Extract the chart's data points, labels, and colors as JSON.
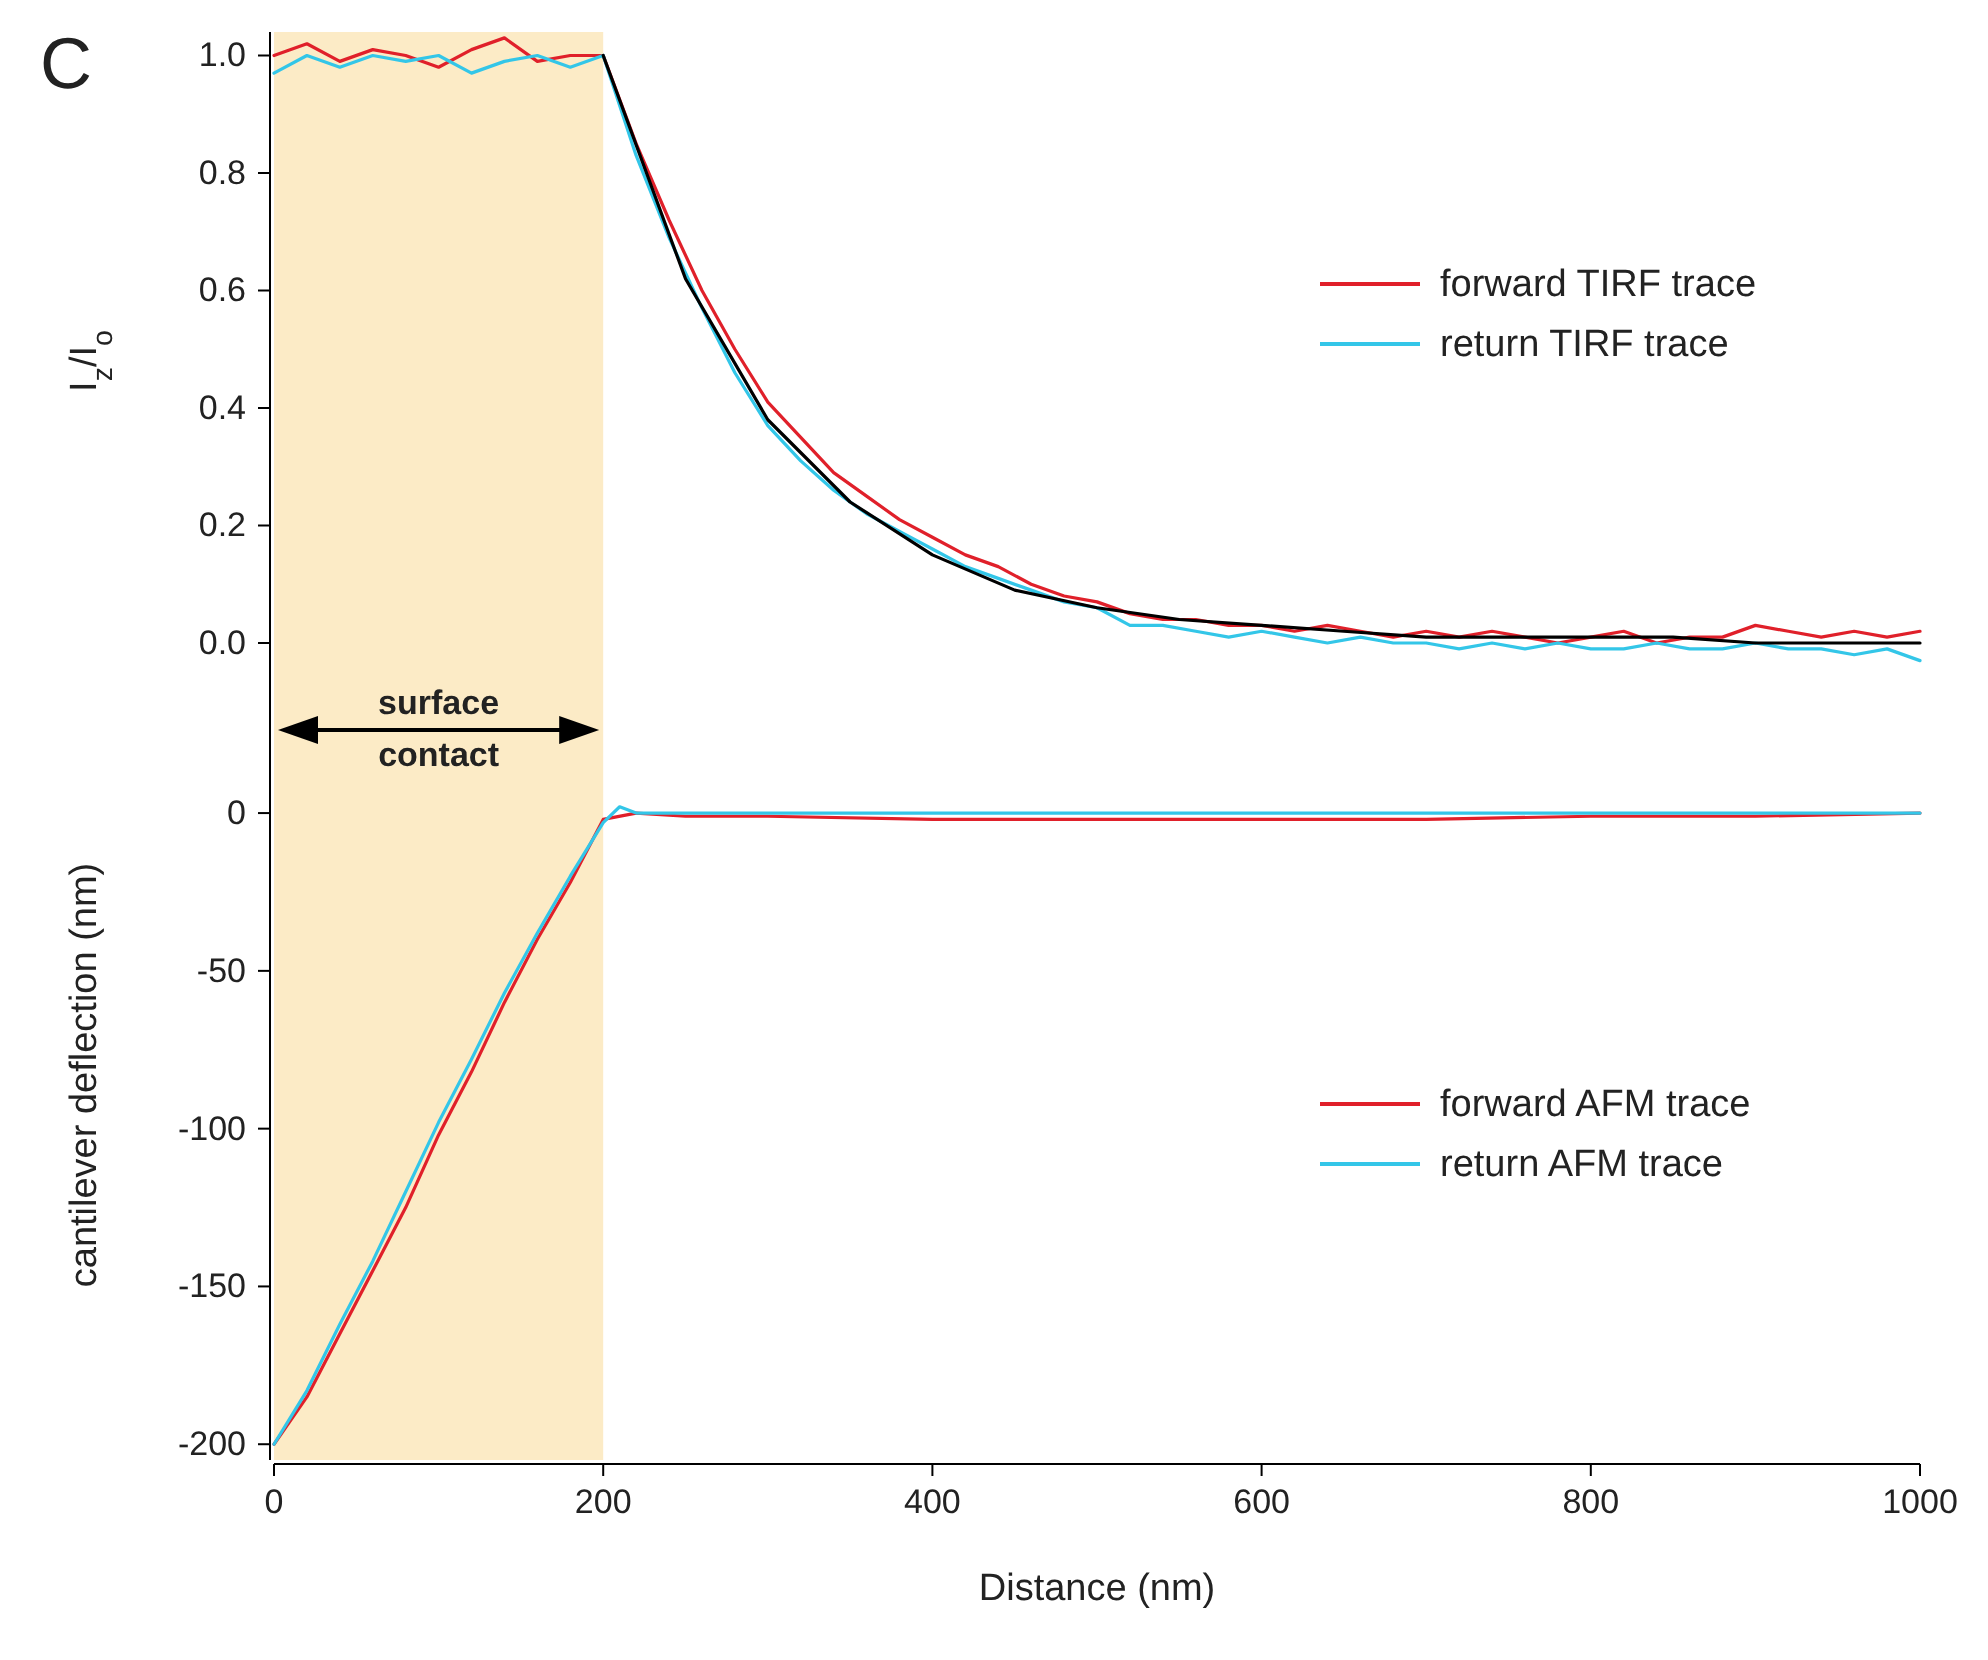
{
  "chart_data": [
    {
      "type": "line",
      "ylabel": "I$_{z}$/I$_{o}$",
      "xlim": [
        0,
        1000
      ],
      "ylim": [
        -0.08,
        1.04
      ],
      "yticks": [
        {
          "value": 0,
          "label": "0.0"
        },
        {
          "value": 0.2,
          "label": "0.2"
        },
        {
          "value": 0.4,
          "label": "0.4"
        },
        {
          "value": 0.6,
          "label": "0.6"
        },
        {
          "value": 0.8,
          "label": "0.8"
        },
        {
          "value": 1,
          "label": "1.0"
        }
      ],
      "tick_labels": "y",
      "legend": "right",
      "annotations": [
        "C"
      ],
      "bands": [
        {
          "axis": "x",
          "from": 0,
          "to": 200,
          "color": "#fcebc6"
        }
      ],
      "series": [
        {
          "name": "forward TIRF trace",
          "color": "#e0202a",
          "x": [
            0,
            20,
            40,
            60,
            80,
            100,
            120,
            140,
            160,
            180,
            200,
            220,
            240,
            260,
            280,
            300,
            320,
            340,
            360,
            380,
            400,
            420,
            440,
            460,
            480,
            500,
            520,
            540,
            560,
            580,
            600,
            620,
            640,
            660,
            680,
            700,
            720,
            740,
            760,
            780,
            800,
            820,
            840,
            860,
            880,
            900,
            920,
            940,
            960,
            980,
            1000
          ],
          "values": [
            1.0,
            1.02,
            0.99,
            1.01,
            1.0,
            0.98,
            1.01,
            1.03,
            0.99,
            1.0,
            1.0,
            0.85,
            0.72,
            0.6,
            0.5,
            0.41,
            0.35,
            0.29,
            0.25,
            0.21,
            0.18,
            0.15,
            0.13,
            0.1,
            0.08,
            0.07,
            0.05,
            0.04,
            0.04,
            0.03,
            0.03,
            0.02,
            0.03,
            0.02,
            0.01,
            0.02,
            0.01,
            0.02,
            0.01,
            0.0,
            0.01,
            0.02,
            0.0,
            0.01,
            0.01,
            0.03,
            0.02,
            0.01,
            0.02,
            0.01,
            0.02
          ]
        },
        {
          "name": "return TIRF trace",
          "color": "#33c6e8",
          "x": [
            0,
            20,
            40,
            60,
            80,
            100,
            120,
            140,
            160,
            180,
            200,
            220,
            240,
            260,
            280,
            300,
            320,
            340,
            360,
            380,
            400,
            420,
            440,
            460,
            480,
            500,
            520,
            540,
            560,
            580,
            600,
            620,
            640,
            660,
            680,
            700,
            720,
            740,
            760,
            780,
            800,
            820,
            840,
            860,
            880,
            900,
            920,
            940,
            960,
            980,
            1000
          ],
          "values": [
            0.97,
            1.0,
            0.98,
            1.0,
            0.99,
            1.0,
            0.97,
            0.99,
            1.0,
            0.98,
            1.0,
            0.83,
            0.69,
            0.57,
            0.46,
            0.37,
            0.31,
            0.26,
            0.22,
            0.19,
            0.16,
            0.13,
            0.11,
            0.09,
            0.07,
            0.06,
            0.03,
            0.03,
            0.02,
            0.01,
            0.02,
            0.01,
            0.0,
            0.01,
            0.0,
            0.0,
            -0.01,
            0.0,
            -0.01,
            0.0,
            -0.01,
            -0.01,
            0.0,
            -0.01,
            -0.01,
            0.0,
            -0.01,
            -0.01,
            -0.02,
            -0.01,
            -0.03
          ]
        },
        {
          "color": "#000000",
          "x": [
            200,
            250,
            300,
            350,
            400,
            450,
            500,
            550,
            600,
            650,
            700,
            750,
            800,
            850,
            900,
            950,
            1000
          ],
          "values": [
            1.0,
            0.62,
            0.38,
            0.24,
            0.15,
            0.09,
            0.06,
            0.04,
            0.03,
            0.02,
            0.01,
            0.01,
            0.01,
            0.01,
            0.0,
            0.0,
            0.0
          ]
        }
      ]
    },
    {
      "type": "line",
      "xlabel": "Distance (nm)",
      "ylabel": "cantilever deflection (nm)",
      "xlim": [
        0,
        1000
      ],
      "ylim": [
        -205,
        39
      ],
      "xticks": [
        0,
        200,
        400,
        600,
        800,
        1000
      ],
      "yticks": [
        -200,
        -150,
        -100,
        -50,
        0
      ],
      "legend": "right",
      "annotations": [
        "surface contact"
      ],
      "bands": [
        {
          "axis": "x",
          "from": 0,
          "to": 200,
          "color": "#fcebc6"
        }
      ],
      "series": [
        {
          "name": "forward AFM trace",
          "color": "#e0202a",
          "x": [
            0,
            20,
            40,
            60,
            80,
            100,
            120,
            140,
            160,
            180,
            200,
            220,
            250,
            300,
            400,
            500,
            600,
            700,
            800,
            900,
            1000
          ],
          "values": [
            -200,
            -185,
            -165,
            -145,
            -125,
            -102,
            -82,
            -60,
            -40,
            -22,
            -2,
            0,
            -1,
            -1,
            -2,
            -2,
            -2,
            -2,
            -1,
            -1,
            0
          ]
        },
        {
          "name": "return AFM trace",
          "color": "#33c6e8",
          "x": [
            0,
            20,
            40,
            60,
            80,
            100,
            120,
            140,
            160,
            180,
            200,
            210,
            220,
            300,
            400,
            500,
            600,
            700,
            800,
            900,
            1000
          ],
          "values": [
            -200,
            -183,
            -162,
            -142,
            -120,
            -98,
            -78,
            -57,
            -38,
            -20,
            -3,
            2,
            0,
            0,
            0,
            0,
            0,
            0,
            0,
            0,
            0
          ]
        }
      ]
    }
  ]
}
